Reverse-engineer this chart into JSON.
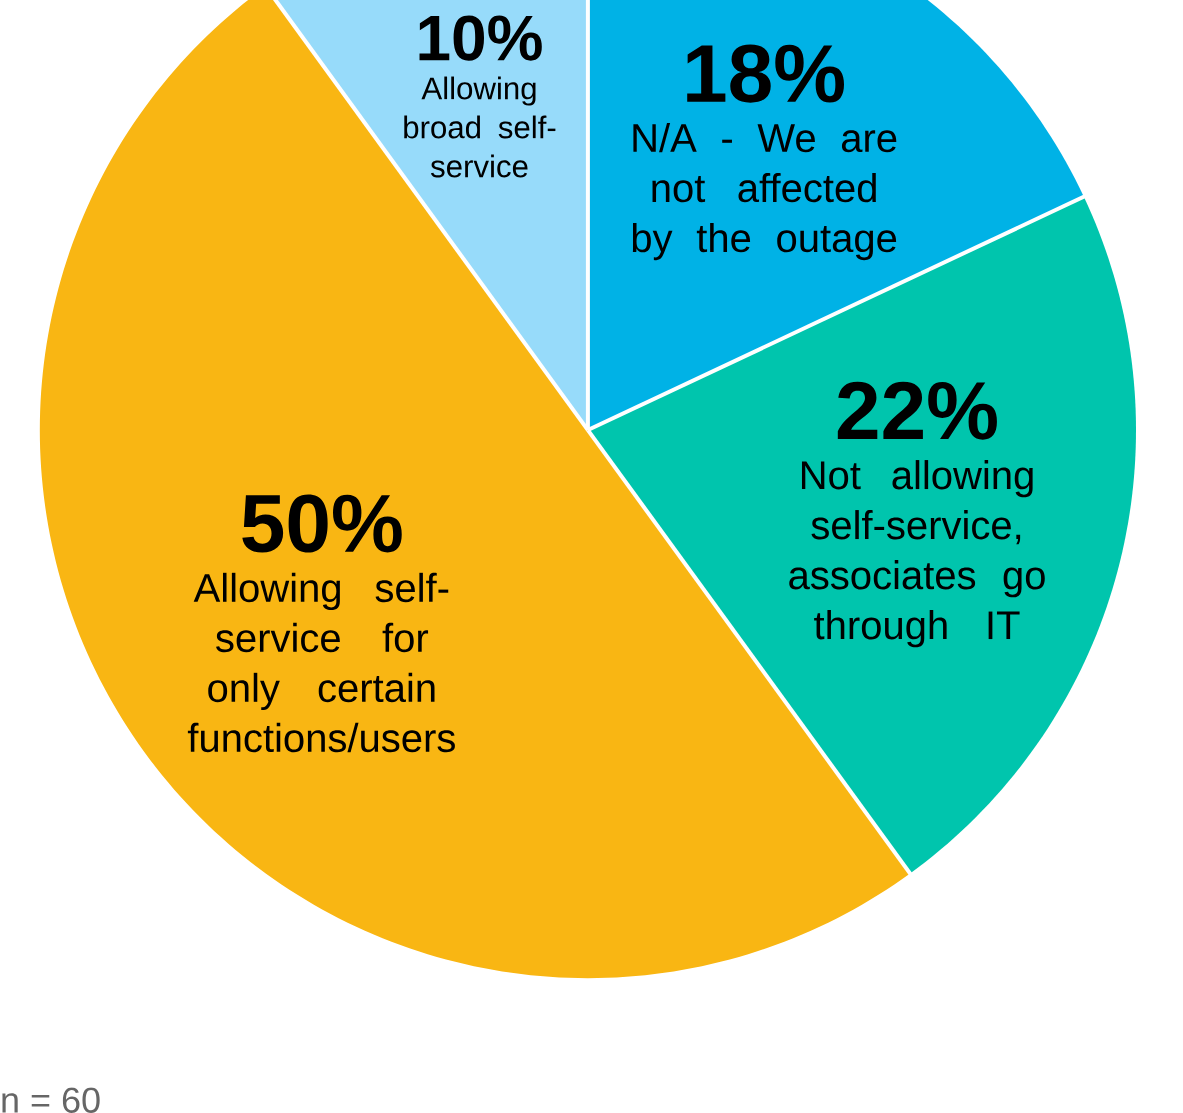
{
  "chart_data": {
    "type": "pie",
    "categories": [
      "N/A - We are not affected by the outage",
      "Not allowing self-service, associates go through IT",
      "Allowing self-service for only certain functions/users",
      "Allowing broad self-service"
    ],
    "values": [
      18,
      22,
      50,
      10
    ],
    "colors": [
      "#00b2e6",
      "#00c5ad",
      "#f9b613",
      "#97dbfa"
    ],
    "value_labels": [
      "18%",
      "22%",
      "50%",
      "10%"
    ],
    "annotations": [
      "n = 60"
    ]
  }
}
